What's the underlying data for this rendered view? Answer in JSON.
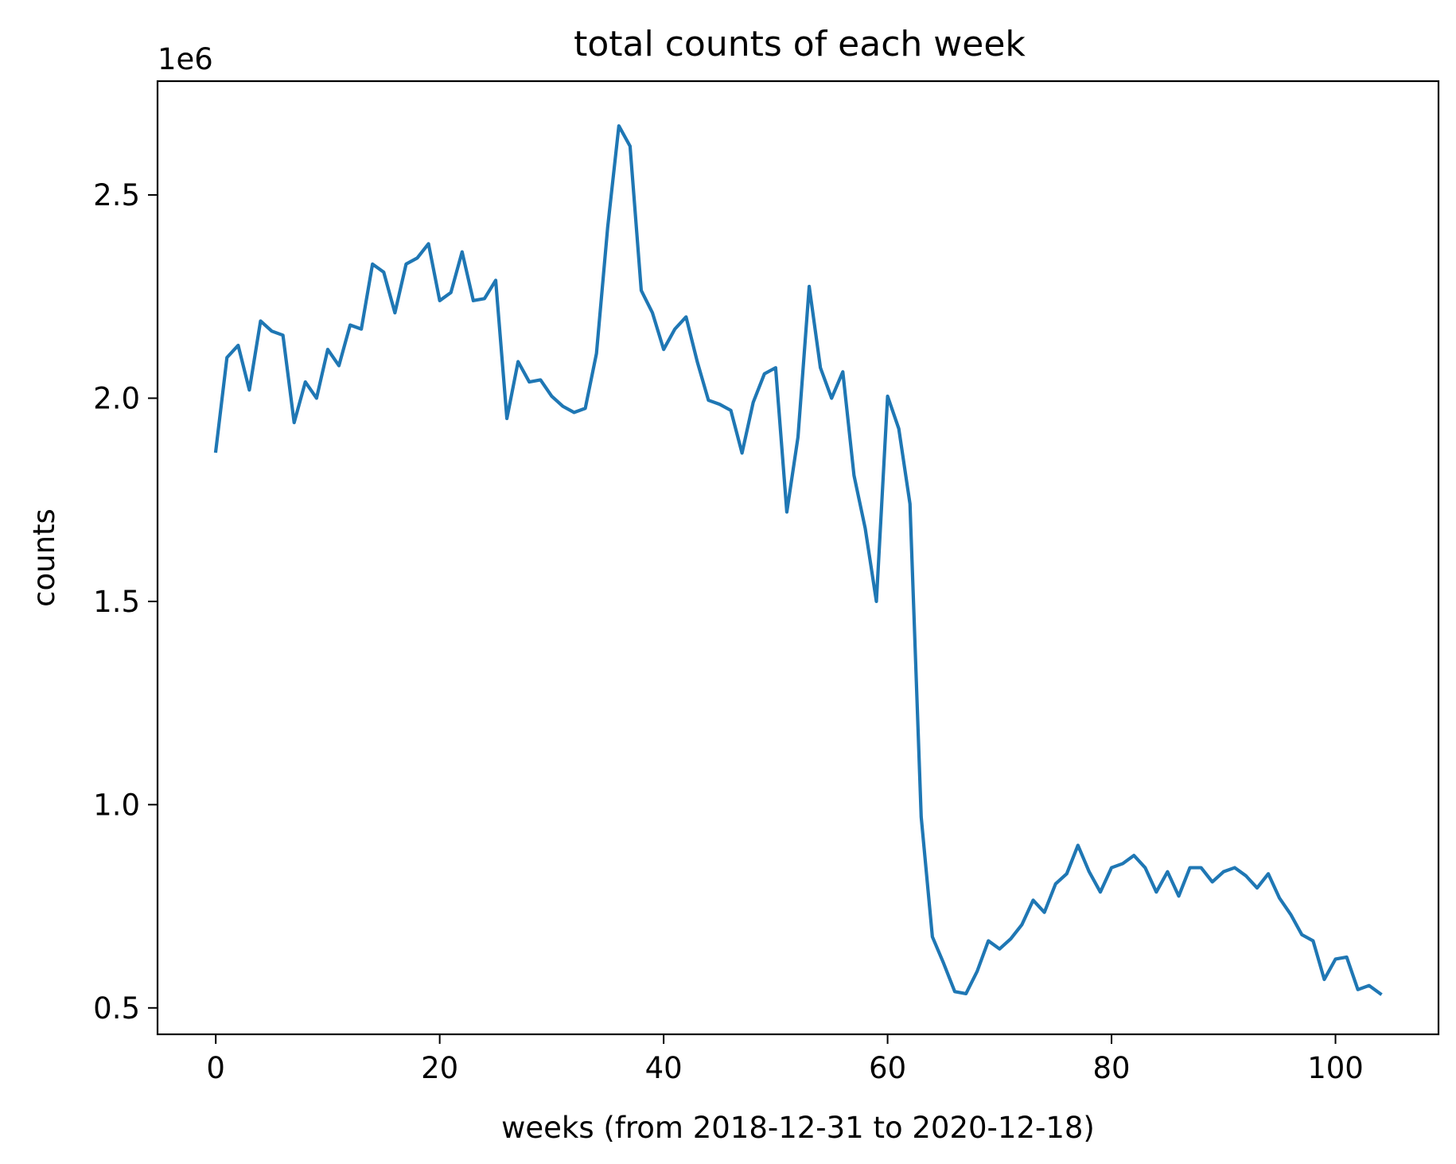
{
  "chart_data": {
    "type": "line",
    "title": "total counts of each week",
    "xlabel": "weeks (from 2018-12-31 to 2020-12-18)",
    "ylabel": "counts",
    "y_offset_label": "1e6",
    "xlim": [
      -5.2,
      109.2
    ],
    "ylim": [
      0.435,
      2.78
    ],
    "x_ticks": [
      0,
      20,
      40,
      60,
      80,
      100
    ],
    "x_tick_labels": [
      "0",
      "20",
      "40",
      "60",
      "80",
      "100"
    ],
    "y_ticks": [
      0.5,
      1.0,
      1.5,
      2.0,
      2.5
    ],
    "y_tick_labels": [
      "0.5",
      "1.0",
      "1.5",
      "2.0",
      "2.5"
    ],
    "grid": false,
    "line_color": "#1f77b4",
    "series": [
      {
        "x": [
          0,
          1,
          2,
          3,
          4,
          5,
          6,
          7,
          8,
          9,
          10,
          11,
          12,
          13,
          14,
          15,
          16,
          17,
          18,
          19,
          20,
          21,
          22,
          23,
          24,
          25,
          26,
          27,
          28,
          29,
          30,
          31,
          32,
          33,
          34,
          35,
          36,
          37,
          38,
          39,
          40,
          41,
          42,
          43,
          44,
          45,
          46,
          47,
          48,
          49,
          50,
          51,
          52,
          53,
          54,
          55,
          56,
          57,
          58,
          59,
          60,
          61,
          62,
          63,
          64,
          65,
          66,
          67,
          68,
          69,
          70,
          71,
          72,
          73,
          74,
          75,
          76,
          77,
          78,
          79,
          80,
          81,
          82,
          83,
          84,
          85,
          86,
          87,
          88,
          89,
          90,
          91,
          92,
          93,
          94,
          95,
          96,
          97,
          98,
          99,
          100,
          101,
          102,
          103,
          104
        ],
        "y": [
          1.87,
          2.1,
          2.13,
          2.02,
          2.19,
          2.165,
          2.155,
          1.94,
          2.04,
          2.0,
          2.12,
          2.08,
          2.18,
          2.17,
          2.33,
          2.31,
          2.21,
          2.33,
          2.345,
          2.38,
          2.24,
          2.26,
          2.36,
          2.24,
          2.245,
          2.29,
          1.95,
          2.09,
          2.04,
          2.045,
          2.005,
          1.98,
          1.965,
          1.975,
          2.11,
          2.42,
          2.67,
          2.62,
          2.265,
          2.21,
          2.12,
          2.17,
          2.2,
          2.09,
          1.995,
          1.985,
          1.97,
          1.865,
          1.99,
          2.06,
          2.075,
          1.72,
          1.905,
          2.275,
          2.075,
          2.0,
          2.065,
          1.81,
          1.68,
          1.5,
          2.005,
          1.925,
          1.74,
          0.97,
          0.675,
          0.61,
          0.54,
          0.535,
          0.59,
          0.665,
          0.645,
          0.67,
          0.705,
          0.765,
          0.735,
          0.805,
          0.83,
          0.9,
          0.835,
          0.785,
          0.845,
          0.855,
          0.875,
          0.845,
          0.785,
          0.835,
          0.775,
          0.845,
          0.845,
          0.81,
          0.835,
          0.845,
          0.825,
          0.795,
          0.83,
          0.77,
          0.73,
          0.68,
          0.665,
          0.57,
          0.62,
          0.625,
          0.545,
          0.555,
          0.535
        ]
      }
    ]
  }
}
